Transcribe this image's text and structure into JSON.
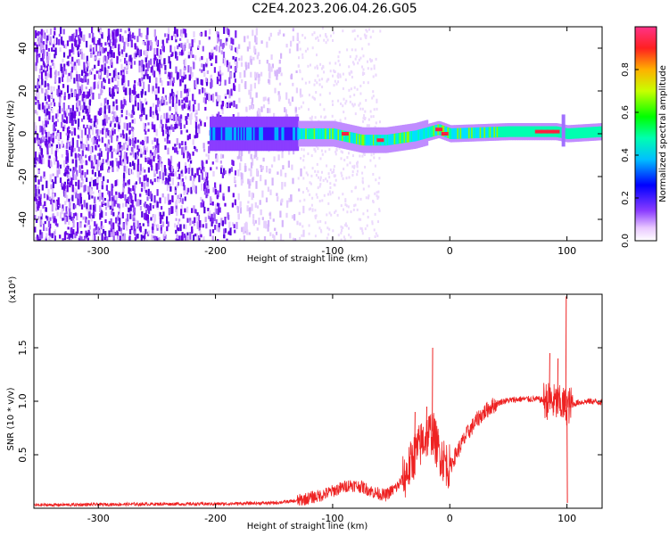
{
  "title": "C2E4.2023.206.04.26.G05",
  "chart_data": [
    {
      "type": "heatmap",
      "xlabel": "Height of straight line (km)",
      "ylabel": "Frequency (Hz)",
      "xlim": [
        -355,
        130
      ],
      "ylim": [
        -50,
        50
      ],
      "xticks": [
        -300,
        -200,
        -100,
        0,
        100
      ],
      "yticks": [
        -40,
        -20,
        0,
        20,
        40
      ],
      "colorbar": {
        "label": "Normalized spectral amplitude",
        "range": [
          0,
          1
        ],
        "ticks": [
          0.0,
          0.2,
          0.4,
          0.6,
          0.8
        ],
        "colormap": "rainbow-white-purple-red"
      },
      "features": {
        "noise_region_x": [
          -355,
          -130
        ],
        "signal_band": [
          {
            "x": -205,
            "freq": 0
          },
          {
            "x": -140,
            "freq": 0
          },
          {
            "x": -100,
            "freq": 0
          },
          {
            "x": -75,
            "freq": -3
          },
          {
            "x": -55,
            "freq": -3
          },
          {
            "x": -30,
            "freq": -1
          },
          {
            "x": -10,
            "freq": 2
          },
          {
            "x": 0,
            "freq": 0
          },
          {
            "x": 50,
            "freq": 1
          },
          {
            "x": 90,
            "freq": 1
          },
          {
            "x": 100,
            "freq": 0
          },
          {
            "x": 130,
            "freq": 1
          }
        ]
      }
    },
    {
      "type": "line",
      "xlabel": "Height of straight line (km)",
      "ylabel": "SNR (10 * v/v)",
      "multiplier": "(x10⁴)",
      "xlim": [
        -355,
        130
      ],
      "ylim": [
        0,
        2.0
      ],
      "xticks": [
        -300,
        -200,
        -100,
        0,
        100
      ],
      "yticks": [
        0.5,
        1.0,
        1.5
      ],
      "color": "#ee2222",
      "series": [
        {
          "points": [
            [
              -355,
              0.03
            ],
            [
              -300,
              0.035
            ],
            [
              -250,
              0.04
            ],
            [
              -200,
              0.04
            ],
            [
              -150,
              0.05
            ],
            [
              -130,
              0.07
            ],
            [
              -110,
              0.12
            ],
            [
              -95,
              0.18
            ],
            [
              -85,
              0.22
            ],
            [
              -75,
              0.2
            ],
            [
              -65,
              0.15
            ],
            [
              -55,
              0.12
            ],
            [
              -45,
              0.2
            ],
            [
              -38,
              0.3
            ],
            [
              -30,
              0.5
            ],
            [
              -22,
              0.65
            ],
            [
              -15,
              0.72
            ],
            [
              -10,
              0.55
            ],
            [
              -5,
              0.45
            ],
            [
              0,
              0.38
            ],
            [
              5,
              0.5
            ],
            [
              15,
              0.7
            ],
            [
              25,
              0.85
            ],
            [
              35,
              0.95
            ],
            [
              45,
              1.0
            ],
            [
              60,
              1.02
            ],
            [
              75,
              1.02
            ],
            [
              85,
              1.0
            ],
            [
              92,
              0.98
            ],
            [
              100,
              0.95
            ],
            [
              110,
              0.99
            ],
            [
              120,
              1.0
            ],
            [
              130,
              0.99
            ]
          ],
          "spikes": [
            [
              -15,
              1.5
            ],
            [
              85,
              1.45
            ],
            [
              92,
              1.4
            ],
            [
              99,
              1.98
            ],
            [
              100,
              0.05
            ],
            [
              -30,
              0.9
            ],
            [
              -20,
              0.95
            ]
          ]
        }
      ]
    }
  ]
}
